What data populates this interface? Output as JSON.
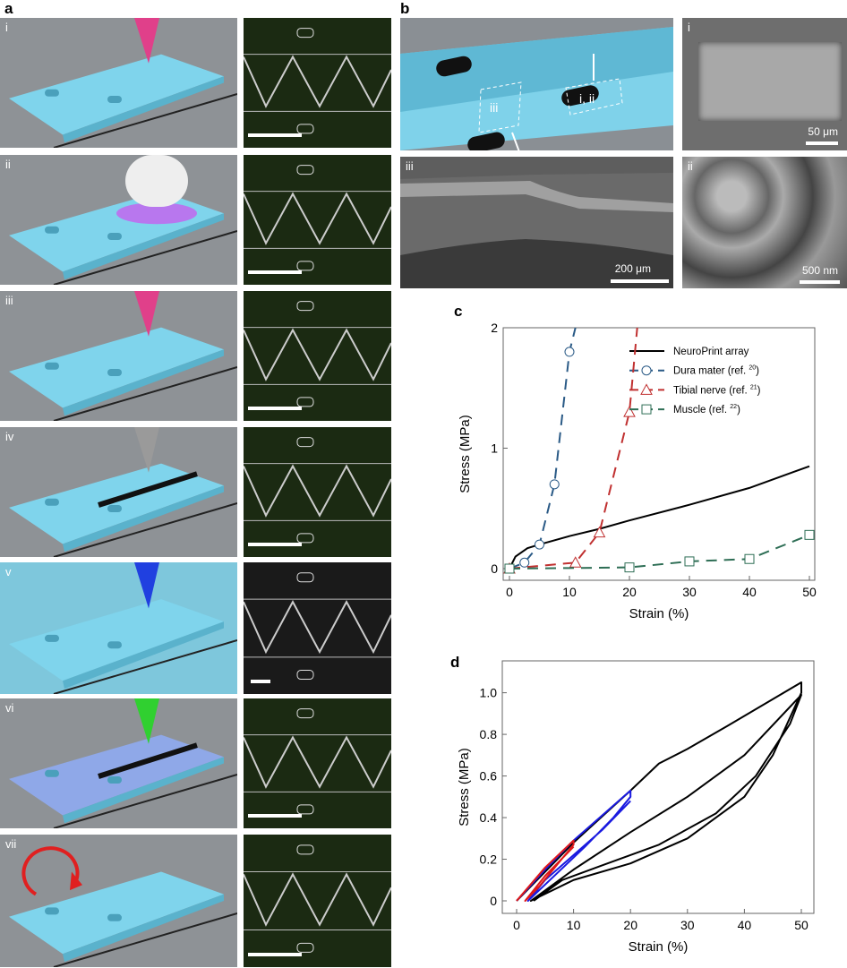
{
  "panel_labels": {
    "a": "a",
    "b": "b",
    "c": "c",
    "d": "d"
  },
  "panel_a": {
    "rows": [
      {
        "label": "i",
        "tool": "pink-nozzle",
        "tool_color": "#e0408a"
      },
      {
        "label": "ii",
        "tool": "uv-lamp",
        "tool_color": "#d040e0"
      },
      {
        "label": "iii",
        "tool": "pink-nozzle",
        "tool_color": "#e0408a"
      },
      {
        "label": "iv",
        "tool": "gray-nozzle",
        "tool_color": "#9a9a9a"
      },
      {
        "label": "v",
        "tool": "blue-nozzle",
        "tool_color": "#2040e0"
      },
      {
        "label": "vi",
        "tool": "green-nozzle",
        "tool_color": "#30d030"
      },
      {
        "label": "vii",
        "tool": "red-rotate-arrow",
        "tool_color": "#e02020"
      }
    ]
  },
  "panel_b": {
    "render_labels": {
      "box1": "i, ii",
      "box2": "iii"
    },
    "sem": [
      {
        "label": "i",
        "scale": "50 μm"
      },
      {
        "label": "iii",
        "scale": "200 μm"
      },
      {
        "label": "ii",
        "scale": "500 nm"
      }
    ]
  },
  "chart_data": [
    {
      "id": "c",
      "type": "line",
      "xlabel": "Strain (%)",
      "ylabel": "Stress (MPa)",
      "xlim": [
        0,
        50
      ],
      "ylim": [
        0,
        2
      ],
      "xticks": [
        0,
        10,
        20,
        30,
        40,
        50
      ],
      "yticks": [
        0,
        1,
        2
      ],
      "legend_placement": "top-right",
      "series": [
        {
          "name": "NeuroPrint array",
          "ref": "",
          "color": "#000000",
          "dash": false,
          "marker": "none",
          "x": [
            0,
            1,
            3,
            5,
            10,
            15,
            20,
            30,
            40,
            50
          ],
          "y": [
            0,
            0.1,
            0.17,
            0.2,
            0.27,
            0.33,
            0.4,
            0.53,
            0.67,
            0.85
          ]
        },
        {
          "name": "Dura mater (ref. ",
          "ref": "20",
          "color": "#2a5a86",
          "dash": true,
          "marker": "circle",
          "x": [
            0,
            2.5,
            5,
            7.5,
            10,
            11
          ],
          "y": [
            0,
            0.05,
            0.2,
            0.7,
            1.8,
            2.0
          ],
          "marker_x": [
            0,
            2.5,
            5,
            7.5,
            10
          ],
          "marker_y": [
            0,
            0.05,
            0.2,
            0.7,
            1.8
          ]
        },
        {
          "name": "Tibial nerve (ref. ",
          "ref": "21",
          "color": "#c03030",
          "dash": true,
          "marker": "triangle",
          "x": [
            0,
            11,
            15,
            20,
            21.3
          ],
          "y": [
            0,
            0.05,
            0.3,
            1.3,
            2.0
          ],
          "marker_x": [
            0,
            11,
            15,
            20
          ],
          "marker_y": [
            0,
            0.05,
            0.3,
            1.3
          ]
        },
        {
          "name": "Muscle (ref. ",
          "ref": "22",
          "color": "#2e6e55",
          "dash": true,
          "marker": "square",
          "x": [
            0,
            20,
            30,
            40,
            50
          ],
          "y": [
            0,
            0.01,
            0.06,
            0.08,
            0.28
          ],
          "marker_x": [
            0,
            20,
            30,
            40,
            50
          ],
          "marker_y": [
            0,
            0.01,
            0.06,
            0.08,
            0.28
          ]
        }
      ]
    },
    {
      "id": "d",
      "type": "line",
      "xlabel": "Strain (%)",
      "ylabel": "Stress (MPa)",
      "xlim": [
        0,
        50
      ],
      "ylim": [
        0,
        1.05
      ],
      "xticks": [
        0,
        10,
        20,
        30,
        40,
        50
      ],
      "yticks": [
        "0",
        "0.2",
        "0.4",
        "0.6",
        "0.8",
        "1.0"
      ],
      "series": [
        {
          "color": "#000000",
          "x": [
            0,
            10,
            20,
            25,
            30,
            37,
            50,
            50,
            45,
            40,
            30,
            20,
            10,
            2.5,
            10,
            20,
            30,
            40,
            50,
            48,
            42,
            35,
            25,
            15,
            8,
            3
          ],
          "y": [
            0,
            0.28,
            0.53,
            0.66,
            0.73,
            0.84,
            1.05,
            1.0,
            0.7,
            0.5,
            0.3,
            0.18,
            0.1,
            0,
            0.15,
            0.33,
            0.5,
            0.7,
            0.99,
            0.85,
            0.6,
            0.42,
            0.27,
            0.17,
            0.1,
            0
          ]
        },
        {
          "color": "#1a1ae0",
          "x": [
            0,
            5,
            10,
            15,
            20,
            20,
            17,
            12,
            7,
            2,
            5,
            10,
            15,
            20
          ],
          "y": [
            0,
            0.15,
            0.29,
            0.41,
            0.53,
            0.5,
            0.4,
            0.26,
            0.13,
            0,
            0.1,
            0.22,
            0.34,
            0.48
          ]
        },
        {
          "color": "#e01818",
          "x": [
            0,
            5,
            10,
            10,
            7,
            4,
            1.5,
            5,
            10
          ],
          "y": [
            0,
            0.16,
            0.29,
            0.27,
            0.17,
            0.07,
            0,
            0.12,
            0.26
          ]
        }
      ]
    }
  ]
}
